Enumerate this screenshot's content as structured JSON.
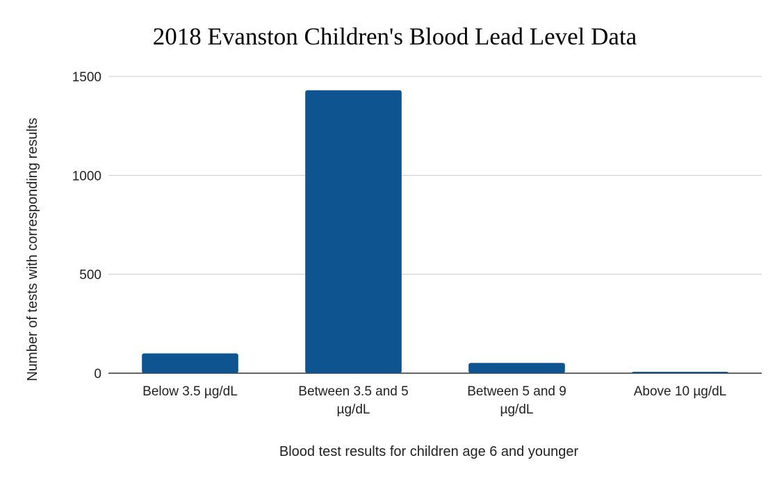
{
  "chart_data": {
    "type": "bar",
    "title": "2018 Evanston Children's Blood Lead Level Data",
    "xlabel": "Blood test results for children age 6 and younger",
    "ylabel": "Number of tests with corresponding results",
    "categories": [
      [
        "Below 3.5 µg/dL"
      ],
      [
        "Between 3.5 and 5",
        "µg/dL"
      ],
      [
        "Between 5 and 9",
        "µg/dL"
      ],
      [
        "Above 10 µg/dL"
      ]
    ],
    "values": [
      100,
      1430,
      52,
      6
    ],
    "ylim": [
      0,
      1500
    ],
    "yticks": [
      0,
      500,
      1000,
      1500
    ],
    "grid": true,
    "legend": "none",
    "bar_color": "#0e5491"
  }
}
